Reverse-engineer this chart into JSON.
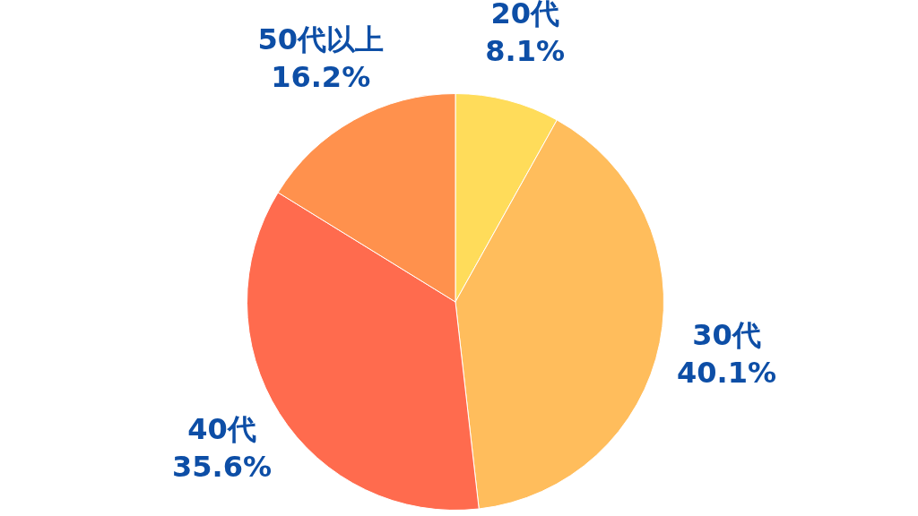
{
  "chart_data": {
    "type": "pie",
    "categories": [
      "20代",
      "30代",
      "40代",
      "50代以上"
    ],
    "values": [
      8.1,
      40.1,
      35.6,
      16.2
    ],
    "value_labels": [
      "8.1%",
      "40.1%",
      "35.6%",
      "16.2%"
    ],
    "colors": [
      "#ffdc5a",
      "#ffbd5c",
      "#ff6b4e",
      "#ff914d"
    ]
  }
}
